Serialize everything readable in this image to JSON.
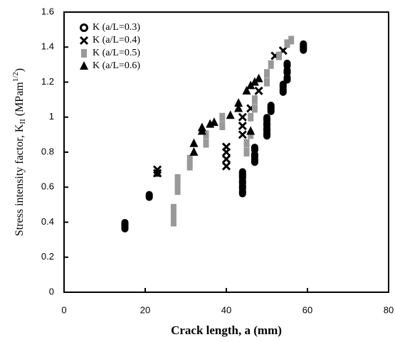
{
  "chart_data": {
    "type": "scatter",
    "x_label": "Crack length,  a (mm)",
    "y_label_parts": [
      "Stress intensity factor, K",
      "II",
      " (MPam",
      "1/2",
      ")"
    ],
    "xlim": [
      0,
      80
    ],
    "xticks": [
      0,
      20,
      40,
      60,
      80
    ],
    "ylim": [
      0,
      1.6
    ],
    "yticks": [
      0,
      0.2,
      0.4,
      0.6,
      0.8,
      1,
      1.2,
      1.4,
      1.6
    ],
    "legend": "upper-left",
    "series": [
      {
        "name": "K (a/L=0.3)",
        "marker": "circle",
        "color": "#000000",
        "x": [
          15,
          15,
          15,
          21,
          44,
          44,
          44,
          44,
          44,
          47,
          47,
          47,
          50,
          50,
          50,
          50,
          51,
          51,
          54,
          54,
          55,
          55,
          55,
          59,
          59
        ],
        "values": [
          0.37,
          0.38,
          0.39,
          0.55,
          0.57,
          0.6,
          0.63,
          0.66,
          0.68,
          0.75,
          0.78,
          0.82,
          0.9,
          0.93,
          0.96,
          0.99,
          1.04,
          1.06,
          1.15,
          1.18,
          1.22,
          1.26,
          1.3,
          1.39,
          1.41
        ]
      },
      {
        "name": "K (a/L=0.4)",
        "marker": "cross",
        "color": "#000000",
        "x": [
          23,
          23,
          40,
          40,
          40,
          40,
          44,
          44,
          44,
          46,
          48,
          52,
          54
        ],
        "values": [
          0.68,
          0.7,
          0.72,
          0.76,
          0.8,
          0.83,
          0.9,
          0.95,
          1.0,
          1.05,
          1.15,
          1.35,
          1.38
        ]
      },
      {
        "name": "K (a/L=0.5)",
        "marker": "square",
        "color": "#999999",
        "x": [
          27,
          27,
          27,
          28,
          28,
          28,
          31,
          31,
          35,
          35,
          39,
          39,
          45,
          45,
          46,
          46,
          47,
          47,
          50,
          50,
          51,
          53,
          55,
          56
        ],
        "values": [
          0.4,
          0.44,
          0.48,
          0.58,
          0.62,
          0.65,
          0.72,
          0.76,
          0.85,
          0.9,
          0.95,
          1.0,
          0.8,
          0.85,
          0.9,
          1.0,
          1.05,
          1.1,
          1.2,
          1.25,
          1.3,
          1.35,
          1.42,
          1.44
        ]
      },
      {
        "name": "K (a/L=0.6)",
        "marker": "triangle",
        "color": "#000000",
        "x": [
          23,
          32,
          32,
          34,
          34,
          36,
          37,
          41,
          43,
          43,
          45,
          46,
          47,
          48,
          46
        ],
        "values": [
          0.68,
          0.8,
          0.85,
          0.92,
          0.94,
          0.96,
          0.97,
          1.01,
          1.05,
          1.08,
          1.15,
          1.18,
          1.2,
          1.22,
          0.92
        ]
      }
    ]
  }
}
